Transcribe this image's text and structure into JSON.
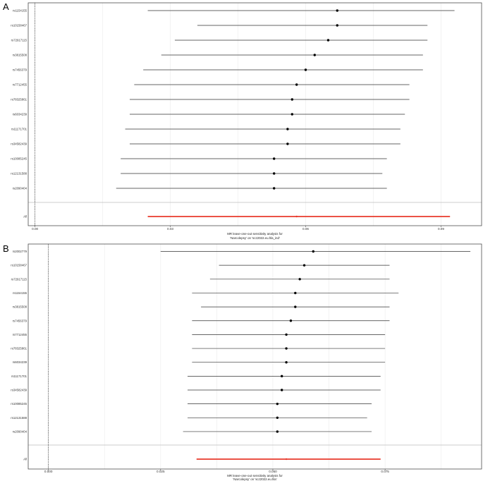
{
  "panels": [
    {
      "tag": "A"
    },
    {
      "tag": "B"
    }
  ],
  "chart_data": [
    {
      "type": "forest",
      "panel": "A",
      "xlabel_line1": "MR leave-one-out sensitivity analysis for",
      "xlabel_line2": "'Narcolepsy' on 'scz2022.eu.hla_ind'",
      "xlim": [
        -0.0015,
        0.099
      ],
      "xticks": [
        0.0,
        0.03,
        0.06,
        0.09
      ],
      "xtick_labels": [
        "0.00",
        "0.03",
        "0.06",
        "0.09"
      ],
      "reference_line": 0,
      "snps": [
        {
          "label": "rs1154155",
          "estimate": 0.067,
          "lower": 0.025,
          "upper": 0.093
        },
        {
          "label": "rs10158467",
          "estimate": 0.067,
          "lower": 0.036,
          "upper": 0.087
        },
        {
          "label": "rs72917115",
          "estimate": 0.065,
          "lower": 0.031,
          "upper": 0.087
        },
        {
          "label": "rs3815508",
          "estimate": 0.062,
          "lower": 0.028,
          "upper": 0.086
        },
        {
          "label": "rs7456379",
          "estimate": 0.06,
          "lower": 0.024,
          "upper": 0.086
        },
        {
          "label": "rs7712455",
          "estimate": 0.058,
          "lower": 0.022,
          "upper": 0.083
        },
        {
          "label": "rs78325861",
          "estimate": 0.057,
          "lower": 0.021,
          "upper": 0.083
        },
        {
          "label": "rs6034239",
          "estimate": 0.057,
          "lower": 0.021,
          "upper": 0.082
        },
        {
          "label": "rs11171701",
          "estimate": 0.056,
          "lower": 0.02,
          "upper": 0.081
        },
        {
          "label": "rs34582439",
          "estimate": 0.056,
          "lower": 0.021,
          "upper": 0.081
        },
        {
          "label": "rs10085245",
          "estimate": 0.053,
          "lower": 0.019,
          "upper": 0.078
        },
        {
          "label": "rs12131588",
          "estimate": 0.053,
          "lower": 0.019,
          "upper": 0.077
        },
        {
          "label": "rs2090404",
          "estimate": 0.053,
          "lower": 0.018,
          "upper": 0.078
        }
      ],
      "all": {
        "label": "All",
        "estimate": 0.058,
        "lower": 0.025,
        "upper": 0.092
      }
    },
    {
      "type": "forest",
      "panel": "B",
      "xlabel_line1": "MR leave-one-out sensitivity analysis for",
      "xlabel_line2": "'Narcolepsy' on 'scz2022.eu.hla'",
      "xlim": [
        -0.0045,
        0.0965
      ],
      "xticks": [
        0.0,
        0.025,
        0.05,
        0.075
      ],
      "xtick_labels": [
        "0.000",
        "0.025",
        "0.050",
        "0.075"
      ],
      "reference_line": 0,
      "snps": [
        {
          "label": "rs2002779",
          "estimate": 0.059,
          "lower": 0.025,
          "upper": 0.094
        },
        {
          "label": "rs10158467",
          "estimate": 0.057,
          "lower": 0.038,
          "upper": 0.076
        },
        {
          "label": "rs72917115",
          "estimate": 0.056,
          "lower": 0.036,
          "upper": 0.076
        },
        {
          "label": "rs1154155",
          "estimate": 0.055,
          "lower": 0.032,
          "upper": 0.078
        },
        {
          "label": "rs3815508",
          "estimate": 0.055,
          "lower": 0.034,
          "upper": 0.076
        },
        {
          "label": "rs7456379",
          "estimate": 0.054,
          "lower": 0.032,
          "upper": 0.076
        },
        {
          "label": "rs7712455",
          "estimate": 0.053,
          "lower": 0.032,
          "upper": 0.075
        },
        {
          "label": "rs78325861",
          "estimate": 0.053,
          "lower": 0.032,
          "upper": 0.075
        },
        {
          "label": "rs6034239",
          "estimate": 0.053,
          "lower": 0.032,
          "upper": 0.075
        },
        {
          "label": "rs11171701",
          "estimate": 0.052,
          "lower": 0.031,
          "upper": 0.074
        },
        {
          "label": "rs34582439",
          "estimate": 0.052,
          "lower": 0.031,
          "upper": 0.074
        },
        {
          "label": "rs10085245",
          "estimate": 0.051,
          "lower": 0.031,
          "upper": 0.072
        },
        {
          "label": "rs12131588",
          "estimate": 0.051,
          "lower": 0.031,
          "upper": 0.071
        },
        {
          "label": "rs2090404",
          "estimate": 0.051,
          "lower": 0.03,
          "upper": 0.072
        }
      ],
      "all": {
        "label": "All",
        "estimate": 0.053,
        "lower": 0.033,
        "upper": 0.074
      }
    }
  ],
  "colors": {
    "point": "#000000",
    "ci_line": "#333333",
    "all_line": "#e8392c",
    "grid": "#ebebeb",
    "separator": "#bdbdbd",
    "panel_border": "#4d4d4d",
    "reference": "#000000"
  },
  "grid": true
}
